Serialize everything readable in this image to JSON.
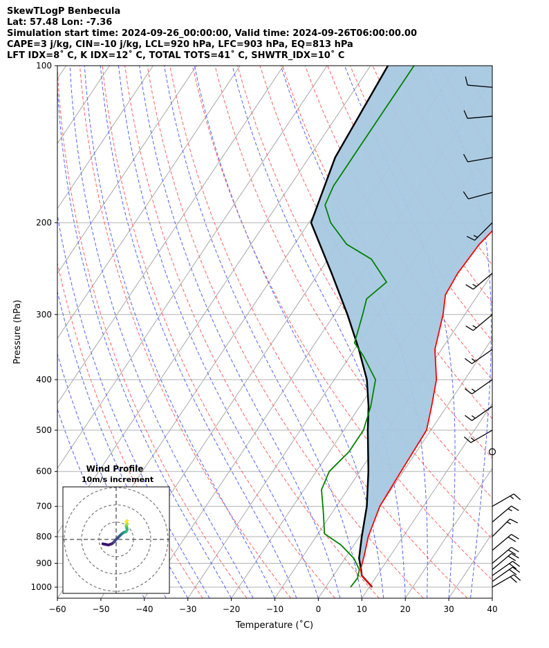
{
  "header": {
    "line1": "SkewTLogP Benbecula",
    "line2": "Lat: 57.48   Lon: -7.36",
    "line3": "Simulation start time: 2024-09-26_00:00:00, Valid time: 2024-09-26T06:00:00.00",
    "line4": "CAPE=3 j/kg, CIN=-10 j/kg, LCL=920 hPa, LFC=903 hPa, EQ=813 hPa",
    "line5": "LFT IDX=8˚ C, K IDX=12˚ C, TOTAL TOTS=41˚ C, SHWTR_IDX=10˚ C"
  },
  "axes": {
    "xlabel": "Temperature (˚C)",
    "ylabel": "Pressure (hPa)",
    "xticks": [
      "−60",
      "−50",
      "−40",
      "−30",
      "−20",
      "−10",
      "0",
      "10",
      "20",
      "30",
      "40"
    ],
    "yticks": [
      "100",
      "200",
      "300",
      "400",
      "500",
      "600",
      "700",
      "800",
      "900",
      "1000"
    ]
  },
  "hodograph": {
    "title": "Wind Profile",
    "subtitle": "10m/s increment"
  },
  "chart_data": {
    "type": "line",
    "title": "SkewTLogP Benbecula",
    "xlabel": "Temperature (˚C)",
    "ylabel": "Pressure (hPa)",
    "xlim": [
      -60,
      40
    ],
    "ylim": [
      1050,
      100
    ],
    "y_scale": "log",
    "grid": true,
    "series": [
      {
        "name": "temperature",
        "color": "#ff0000",
        "points": [
          [
            10.7,
            1000
          ],
          [
            6.5,
            950
          ],
          [
            5.3,
            925
          ],
          [
            4.0,
            870
          ],
          [
            2.0,
            800
          ],
          [
            0.0,
            700
          ],
          [
            -0.5,
            600
          ],
          [
            -1.0,
            500
          ],
          [
            -3.5,
            450
          ],
          [
            -6.5,
            400
          ],
          [
            -11.5,
            350
          ],
          [
            -15.0,
            300
          ],
          [
            -17.5,
            275
          ],
          [
            -18.0,
            250
          ],
          [
            -17.5,
            220
          ],
          [
            -16.0,
            200
          ],
          [
            -17.0,
            180
          ],
          [
            -20.0,
            160
          ],
          [
            -22.0,
            140
          ],
          [
            -21.0,
            120
          ],
          [
            -19.5,
            100
          ]
        ]
      },
      {
        "name": "dewpoint",
        "color": "#008000",
        "points": [
          [
            5.7,
            1000
          ],
          [
            5.9,
            960
          ],
          [
            5.0,
            925
          ],
          [
            2.0,
            880
          ],
          [
            -3.0,
            830
          ],
          [
            -8.5,
            790
          ],
          [
            -12.0,
            720
          ],
          [
            -16.0,
            650
          ],
          [
            -17.0,
            600
          ],
          [
            -15.5,
            550
          ],
          [
            -15.5,
            500
          ],
          [
            -17.5,
            450
          ],
          [
            -20.5,
            400
          ],
          [
            -27.0,
            360
          ],
          [
            -31.0,
            340
          ],
          [
            -33.5,
            300
          ],
          [
            -35.0,
            280
          ],
          [
            -33.0,
            260
          ],
          [
            -40.0,
            235
          ],
          [
            -48.0,
            220
          ],
          [
            -55.0,
            200
          ],
          [
            -59.0,
            185
          ],
          [
            -60.0,
            170
          ],
          [
            -60.0,
            150
          ],
          [
            -60.0,
            130
          ],
          [
            -60.0,
            100
          ]
        ]
      },
      {
        "name": "parcel",
        "color": "#000000",
        "points": [
          [
            10.7,
            1000
          ],
          [
            6.5,
            950
          ],
          [
            5.4,
            925
          ],
          [
            3.2,
            880
          ],
          [
            0.5,
            800
          ],
          [
            -3.0,
            700
          ],
          [
            -8.0,
            600
          ],
          [
            -14.5,
            500
          ],
          [
            -18.0,
            450
          ],
          [
            -22.5,
            400
          ],
          [
            -29.0,
            350
          ],
          [
            -37.0,
            300
          ],
          [
            -47.0,
            250
          ],
          [
            -59.5,
            200
          ],
          [
            -64.0,
            150
          ],
          [
            -66.0,
            100
          ]
        ]
      }
    ],
    "shaded_region": {
      "between": [
        "parcel",
        "temperature"
      ],
      "color": "#a6c8e0"
    },
    "wind_barbs": [
      {
        "p": 1000,
        "speed_kt": 20,
        "dir_deg": 240
      },
      {
        "p": 975,
        "speed_kt": 20,
        "dir_deg": 235
      },
      {
        "p": 950,
        "speed_kt": 20,
        "dir_deg": 235
      },
      {
        "p": 925,
        "speed_kt": 20,
        "dir_deg": 230
      },
      {
        "p": 900,
        "speed_kt": 20,
        "dir_deg": 230
      },
      {
        "p": 850,
        "speed_kt": 20,
        "dir_deg": 230
      },
      {
        "p": 800,
        "speed_kt": 15,
        "dir_deg": 225
      },
      {
        "p": 750,
        "speed_kt": 15,
        "dir_deg": 230
      },
      {
        "p": 700,
        "speed_kt": 15,
        "dir_deg": 240
      },
      {
        "p": 550,
        "speed_kt": 0,
        "dir_deg": 0
      },
      {
        "p": 500,
        "speed_kt": 15,
        "dir_deg": 60
      },
      {
        "p": 450,
        "speed_kt": 15,
        "dir_deg": 55
      },
      {
        "p": 400,
        "speed_kt": 15,
        "dir_deg": 55
      },
      {
        "p": 350,
        "speed_kt": 15,
        "dir_deg": 55
      },
      {
        "p": 300,
        "speed_kt": 15,
        "dir_deg": 50
      },
      {
        "p": 250,
        "speed_kt": 15,
        "dir_deg": 50
      },
      {
        "p": 200,
        "speed_kt": 15,
        "dir_deg": 45
      },
      {
        "p": 175,
        "speed_kt": 10,
        "dir_deg": 75
      },
      {
        "p": 150,
        "speed_kt": 10,
        "dir_deg": 80
      },
      {
        "p": 125,
        "speed_kt": 10,
        "dir_deg": 85
      },
      {
        "p": 110,
        "speed_kt": 10,
        "dir_deg": 95
      }
    ],
    "hodograph": {
      "points": [
        [
          -6,
          -2
        ],
        [
          -5,
          -2.2
        ],
        [
          -3.5,
          -2.5
        ],
        [
          -2,
          -2
        ],
        [
          -1,
          -1.2
        ],
        [
          0,
          0
        ],
        [
          1.5,
          1.5
        ],
        [
          2.5,
          2.5
        ],
        [
          3.5,
          3.2
        ],
        [
          4.5,
          3.5
        ],
        [
          5,
          4.5
        ],
        [
          4.5,
          6
        ],
        [
          5,
          7
        ],
        [
          4.5,
          8
        ],
        [
          5,
          8.5
        ]
      ]
    }
  }
}
